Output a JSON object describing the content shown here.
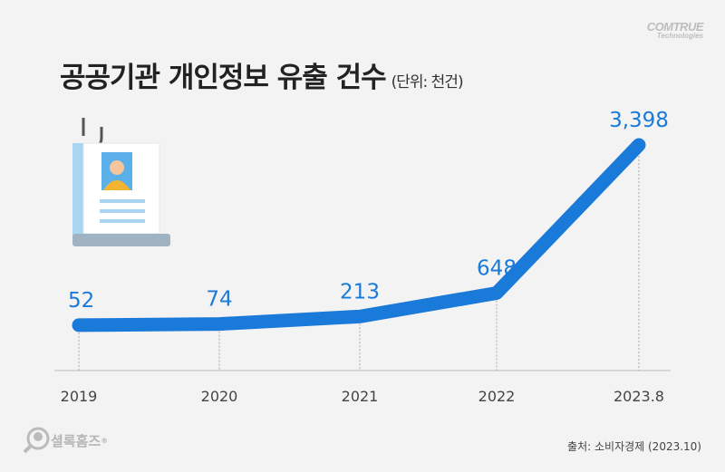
{
  "title": "공공기관 개인정보 유출 건수",
  "unit": "(단위: 천건)",
  "brand": {
    "name": "COMTRUE",
    "sub": "Technologies"
  },
  "logo": "셜록홈즈",
  "source": "출처: 소비자경제 (2023.10)",
  "chart_data": {
    "type": "line",
    "categories": [
      "2019",
      "2020",
      "2021",
      "2022",
      "2023.8"
    ],
    "values": [
      52,
      74,
      213,
      648,
      3398
    ],
    "data_labels": [
      "52",
      "74",
      "213",
      "648",
      "3,398"
    ],
    "color": "#1a7ad9",
    "label_color": "#1a7ad9",
    "grid": false
  }
}
